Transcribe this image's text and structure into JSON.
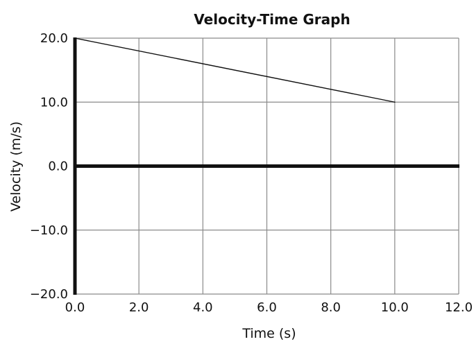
{
  "chart_data": {
    "type": "line",
    "title": "Velocity-Time Graph",
    "xlabel": "Time (s)",
    "ylabel": "Velocity (m/s)",
    "xlim": [
      0,
      12
    ],
    "ylim": [
      -20,
      20
    ],
    "xticks": [
      0,
      2,
      4,
      6,
      8,
      10,
      12
    ],
    "yticks": [
      -20,
      -10,
      0,
      10,
      20
    ],
    "xtick_labels": [
      "0.0",
      "2.0",
      "4.0",
      "6.0",
      "8.0",
      "10.0",
      "12.0"
    ],
    "ytick_labels": [
      "−20.0",
      "−10.0",
      "0.0",
      "10.0",
      "20.0"
    ],
    "grid": true,
    "series": [
      {
        "x": [
          0,
          10
        ],
        "y": [
          20,
          10
        ]
      }
    ]
  }
}
